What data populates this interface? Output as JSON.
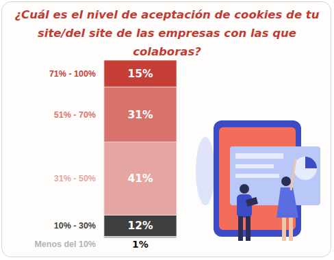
{
  "chart_data": {
    "type": "bar",
    "stacked": true,
    "title": "¿Cuál es el nivel de aceptación de cookies de tu site/del site de las empresas con las que colaboras?",
    "categories": [
      "Menos del 10%",
      "10% - 30%",
      "31% - 50%",
      "51% - 70%",
      "71% - 100%"
    ],
    "values": [
      1,
      12,
      41,
      31,
      15
    ],
    "value_labels": [
      "1%",
      "12%",
      "41%",
      "31%",
      "15%"
    ],
    "colors": [
      "#b3b3b3",
      "#3f3f3f",
      "#e5a6a1",
      "#d8736c",
      "#c53f37"
    ],
    "ylim": [
      0,
      100
    ],
    "data_labels": true,
    "tick_labels": "x"
  }
}
